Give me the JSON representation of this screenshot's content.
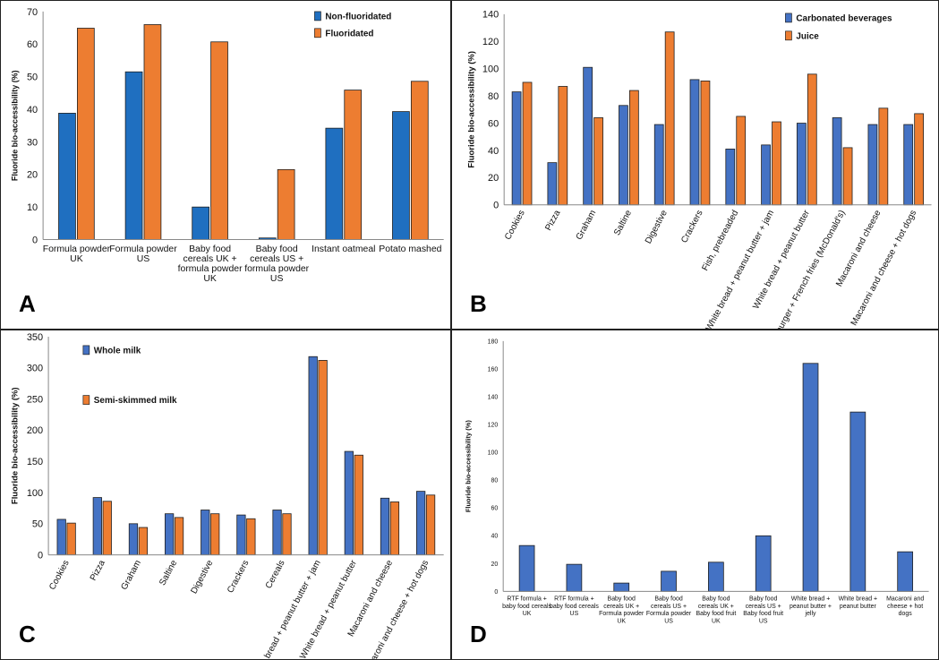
{
  "colors": {
    "blue": "#4472C4",
    "orange": "#ED7D31",
    "bar_edge": "#1f1f1f",
    "axis": "#888888"
  },
  "chart_data": [
    {
      "panel": "A",
      "type": "bar",
      "ylabel": "Fluoride bio-accessibility (%)",
      "ylim": [
        0,
        70
      ],
      "yticks": [
        0,
        10,
        20,
        30,
        40,
        50,
        60,
        70
      ],
      "categories": [
        [
          "Formula powder",
          "UK"
        ],
        [
          "Formula powder",
          "US"
        ],
        [
          "Baby food",
          "cereals UK +",
          "formula powder",
          "UK"
        ],
        [
          "Baby food",
          "cereals US +",
          "formula powder",
          "US"
        ],
        [
          "Instant oatmeal"
        ],
        [
          "Potato mashed"
        ]
      ],
      "series": [
        {
          "name": "Non-fluoridated",
          "color": "#1F6FC0",
          "values": [
            38.8,
            51.5,
            10.0,
            0.5,
            34.2,
            39.3
          ]
        },
        {
          "name": "Fluoridated",
          "color": "#ED7D31",
          "values": [
            64.9,
            66.0,
            60.7,
            21.5,
            45.9,
            48.6
          ]
        }
      ],
      "legend": "top-right"
    },
    {
      "panel": "B",
      "type": "bar",
      "ylabel": "Fluoride bio-accessibility (%)",
      "ylim": [
        0,
        140
      ],
      "yticks": [
        0,
        20,
        40,
        60,
        80,
        100,
        120,
        140
      ],
      "categories": [
        [
          "Cookies"
        ],
        [
          "Pizza"
        ],
        [
          "Graham"
        ],
        [
          "Saltine"
        ],
        [
          "Digestive"
        ],
        [
          "Crackers"
        ],
        [
          "Fish, prebreaded"
        ],
        [
          "White bread + peanut butter + jam"
        ],
        [
          "White bread + peanut butter"
        ],
        [
          "Hamburger + French fries (McDonald's)"
        ],
        [
          "Macaroni and cheese"
        ],
        [
          "Macaroni and cheese + hot dogs"
        ]
      ],
      "series": [
        {
          "name": "Carbonated beverages",
          "color": "#4472C4",
          "values": [
            83,
            31,
            101,
            73,
            59,
            92,
            41,
            44,
            60,
            64,
            59,
            59
          ]
        },
        {
          "name": "Juice",
          "color": "#ED7D31",
          "values": [
            90,
            87,
            64,
            84,
            127,
            91,
            65,
            61,
            96,
            42,
            71,
            67
          ]
        }
      ],
      "legend": "top-right"
    },
    {
      "panel": "C",
      "type": "bar",
      "ylabel": "Fluoride bio-accessibility (%)",
      "ylim": [
        0,
        350
      ],
      "yticks": [
        0,
        50,
        100,
        150,
        200,
        250,
        300,
        350
      ],
      "categories": [
        [
          "Cookies"
        ],
        [
          "Pizza"
        ],
        [
          "Graham"
        ],
        [
          "Saltine"
        ],
        [
          "Digestive"
        ],
        [
          "Crackers"
        ],
        [
          "Cereals"
        ],
        [
          "White bread + peanut butter + jam"
        ],
        [
          "White bread + peanut butter"
        ],
        [
          "Macaroni and cheese"
        ],
        [
          "Macaroni and cheese + hot dogs"
        ]
      ],
      "series": [
        {
          "name": "Whole milk",
          "color": "#4472C4",
          "values": [
            57,
            92,
            50,
            66,
            72,
            64,
            72,
            318,
            166,
            91,
            102
          ]
        },
        {
          "name": "Semi-skimmed milk",
          "color": "#ED7D31",
          "values": [
            51,
            86,
            44,
            60,
            66,
            58,
            66,
            312,
            160,
            85,
            96
          ]
        }
      ],
      "legend": "top-left"
    },
    {
      "panel": "D",
      "type": "bar",
      "ylabel": "Fluoride bio-accessibility (%)",
      "ylim": [
        0,
        180
      ],
      "yticks": [
        0,
        20,
        40,
        60,
        80,
        100,
        120,
        140,
        160,
        180
      ],
      "categories": [
        [
          "RTF formula +",
          "baby food cereals",
          "UK"
        ],
        [
          "RTF formula +",
          "baby food cereals",
          "US"
        ],
        [
          "Baby food",
          "cereals UK +",
          "Formula powder",
          "UK"
        ],
        [
          "Baby food",
          "cereals US +",
          "Formula powder",
          "US"
        ],
        [
          "Baby food",
          "cereals UK +",
          "Baby food fruit",
          "UK"
        ],
        [
          "Baby food",
          "cereals US +",
          "Baby food fruit",
          "US"
        ],
        [
          "White bread +",
          "peanut butter +",
          "jelly"
        ],
        [
          "White bread +",
          "peanut butter"
        ],
        [
          "Macaroni and",
          "cheese + hot",
          "dogs"
        ]
      ],
      "series": [
        {
          "name": "",
          "color": "#4472C4",
          "values": [
            33,
            19.5,
            6,
            14.5,
            21,
            40,
            164,
            129,
            28.5
          ]
        }
      ],
      "legend": "none"
    }
  ],
  "panel_labels": [
    "A",
    "B",
    "C",
    "D"
  ]
}
